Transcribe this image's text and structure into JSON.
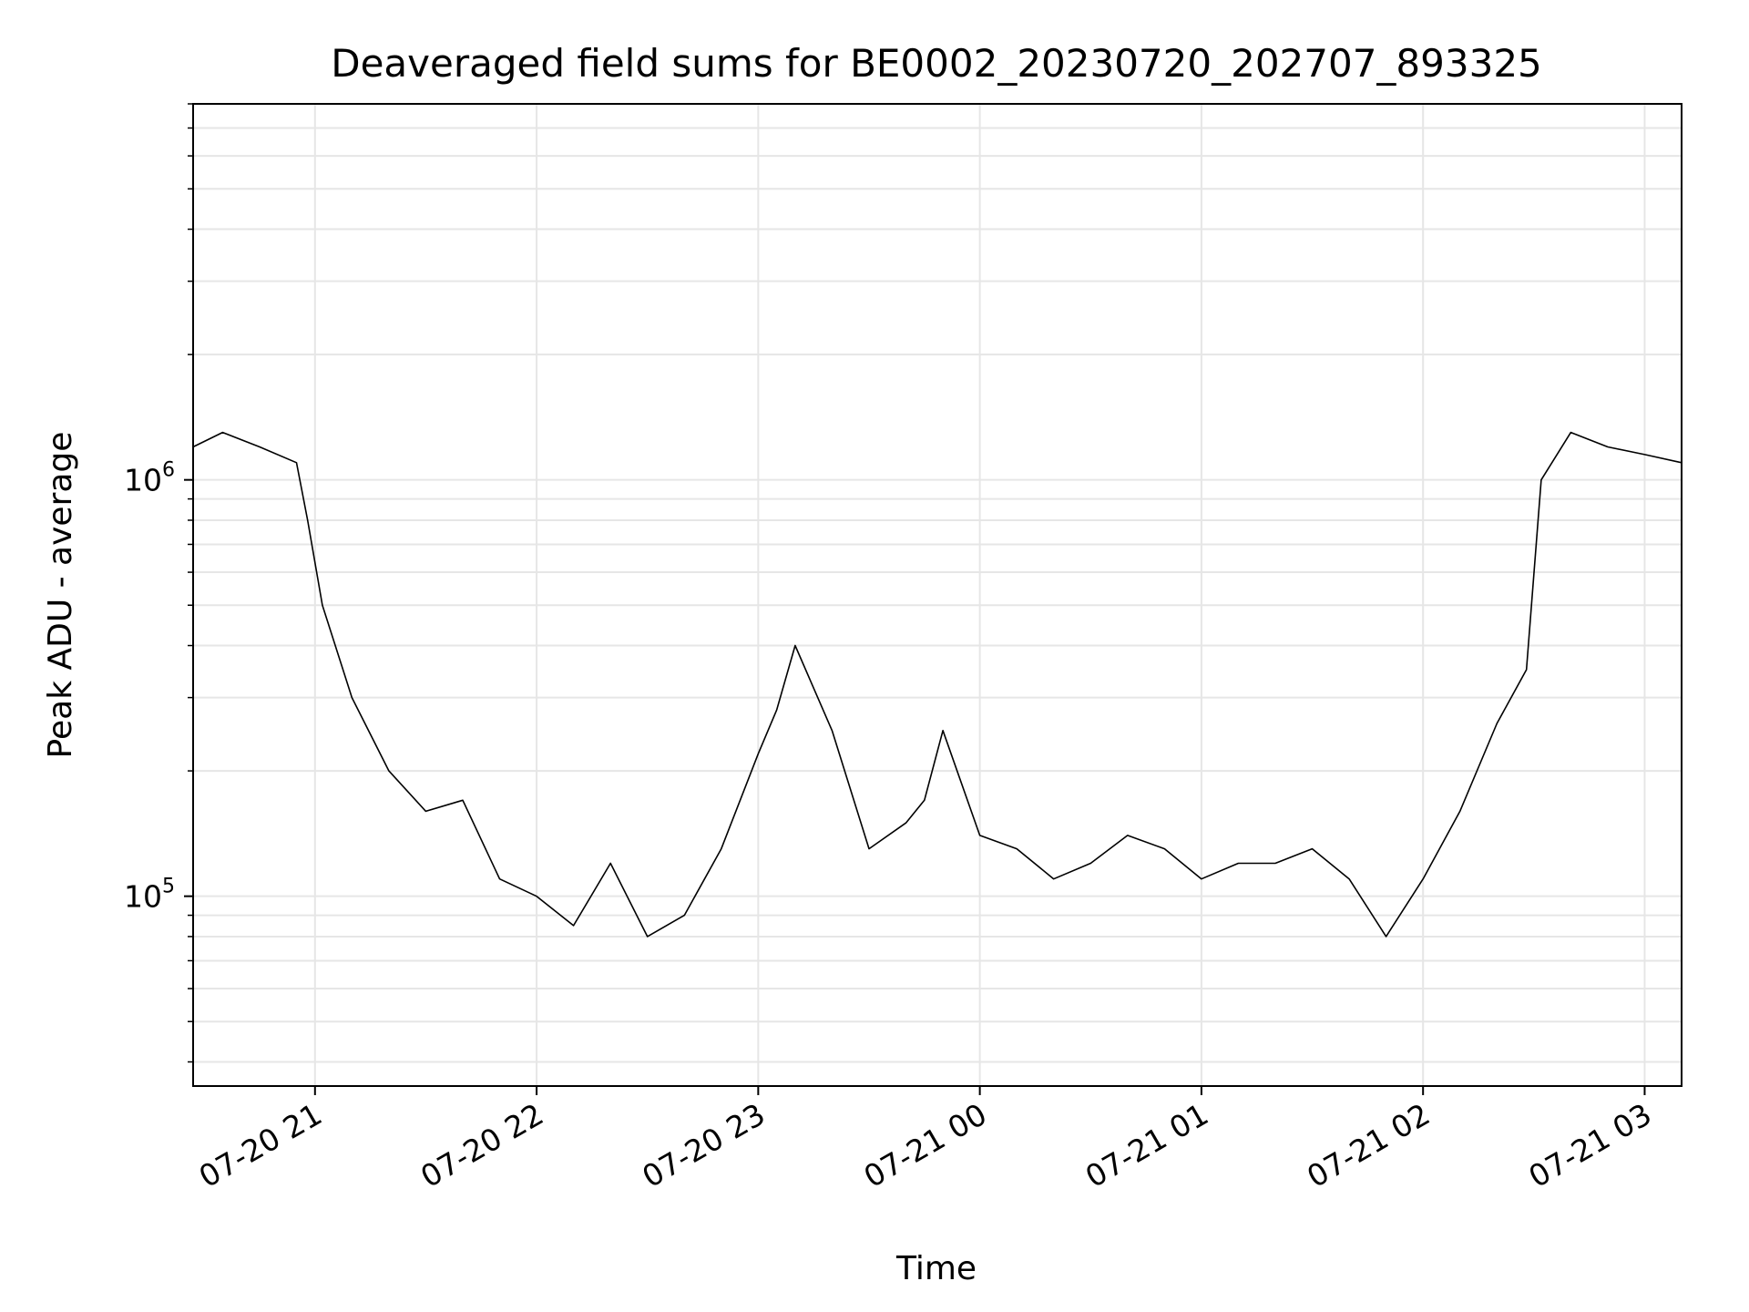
{
  "chart_data": {
    "type": "line",
    "title": "Deaveraged field sums for BE0002_20230720_202707_893325",
    "xlabel": "Time",
    "ylabel": "Peak ADU - average",
    "yscale": "log",
    "grid": true,
    "line_color": "#000000",
    "grid_color": "#e6e6e6",
    "xlim": [
      "2023-07-20 20:27",
      "2023-07-21 03:10"
    ],
    "ylim": [
      35000,
      8000000
    ],
    "x_ticks": [
      {
        "time": "2023-07-20 21:00",
        "label": "07-20 21"
      },
      {
        "time": "2023-07-20 22:00",
        "label": "07-20 22"
      },
      {
        "time": "2023-07-20 23:00",
        "label": "07-20 23"
      },
      {
        "time": "2023-07-21 00:00",
        "label": "07-21 00"
      },
      {
        "time": "2023-07-21 01:00",
        "label": "07-21 01"
      },
      {
        "time": "2023-07-21 02:00",
        "label": "07-21 02"
      },
      {
        "time": "2023-07-21 03:00",
        "label": "07-21 03"
      }
    ],
    "y_ticks": [
      {
        "value": 100000,
        "base": "10",
        "exp": "5"
      },
      {
        "value": 1000000,
        "base": "10",
        "exp": "6"
      }
    ],
    "series": [
      {
        "x": [
          "2023-07-20 20:27",
          "2023-07-20 20:35",
          "2023-07-20 20:45",
          "2023-07-20 20:55",
          "2023-07-20 20:58",
          "2023-07-20 21:02",
          "2023-07-20 21:10",
          "2023-07-20 21:20",
          "2023-07-20 21:30",
          "2023-07-20 21:40",
          "2023-07-20 21:50",
          "2023-07-20 22:00",
          "2023-07-20 22:10",
          "2023-07-20 22:20",
          "2023-07-20 22:30",
          "2023-07-20 22:40",
          "2023-07-20 22:50",
          "2023-07-20 23:00",
          "2023-07-20 23:05",
          "2023-07-20 23:10",
          "2023-07-20 23:20",
          "2023-07-20 23:30",
          "2023-07-20 23:40",
          "2023-07-20 23:45",
          "2023-07-20 23:50",
          "2023-07-21 00:00",
          "2023-07-21 00:10",
          "2023-07-21 00:20",
          "2023-07-21 00:30",
          "2023-07-21 00:40",
          "2023-07-21 00:50",
          "2023-07-21 01:00",
          "2023-07-21 01:10",
          "2023-07-21 01:20",
          "2023-07-21 01:30",
          "2023-07-21 01:40",
          "2023-07-21 01:50",
          "2023-07-21 02:00",
          "2023-07-21 02:10",
          "2023-07-21 02:20",
          "2023-07-21 02:28",
          "2023-07-21 02:32",
          "2023-07-21 02:40",
          "2023-07-21 02:50",
          "2023-07-21 03:00",
          "2023-07-21 03:10"
        ],
        "y": [
          1200000,
          1300000,
          1200000,
          1100000,
          800000,
          500000,
          300000,
          200000,
          160000,
          170000,
          110000,
          100000,
          85000,
          120000,
          80000,
          90000,
          130000,
          220000,
          280000,
          400000,
          250000,
          130000,
          150000,
          170000,
          250000,
          140000,
          130000,
          110000,
          120000,
          140000,
          130000,
          110000,
          120000,
          120000,
          130000,
          110000,
          80000,
          110000,
          160000,
          260000,
          350000,
          1000000,
          1300000,
          1200000,
          1150000,
          1100000
        ]
      }
    ]
  }
}
